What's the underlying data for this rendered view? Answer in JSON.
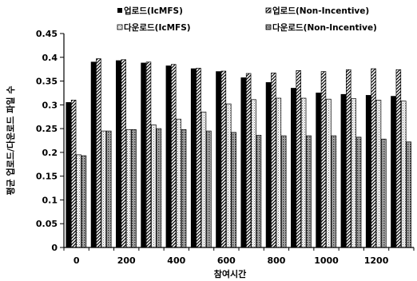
{
  "chart_data": {
    "type": "bar",
    "xlabel": "참여시간",
    "ylabel": "평균 업로드/다운로드 파일 수",
    "ylim": [
      0,
      0.45
    ],
    "yticks": [
      "0",
      "0.05",
      "0.1",
      "0.15",
      "0.2",
      "0.25",
      "0.3",
      "0.35",
      "0.4",
      "0.45"
    ],
    "categories": [
      0,
      100,
      200,
      300,
      400,
      500,
      600,
      700,
      800,
      900,
      1000,
      1100,
      1200,
      1300
    ],
    "xtick_labels": [
      "0",
      "200",
      "400",
      "600",
      "800",
      "1000",
      "1200"
    ],
    "xtick_values": [
      0,
      200,
      400,
      600,
      800,
      1000,
      1200
    ],
    "legend_placement": "top",
    "grid": false,
    "series": [
      {
        "name": "업로드(IcMFS)",
        "pattern": "solid-black",
        "values": [
          0.305,
          0.39,
          0.393,
          0.388,
          0.382,
          0.376,
          0.37,
          0.357,
          0.347,
          0.335,
          0.325,
          0.322,
          0.32,
          0.318
        ]
      },
      {
        "name": "업로드(Non-Incentive)",
        "pattern": "diagonal-hatch",
        "values": [
          0.31,
          0.397,
          0.395,
          0.39,
          0.385,
          0.377,
          0.371,
          0.366,
          0.367,
          0.372,
          0.37,
          0.374,
          0.376,
          0.374
        ]
      },
      {
        "name": "다운로드(IcMFS)",
        "pattern": "light-stipple",
        "values": [
          0.195,
          0.245,
          0.248,
          0.258,
          0.27,
          0.285,
          0.302,
          0.311,
          0.314,
          0.314,
          0.312,
          0.313,
          0.31,
          0.308
        ]
      },
      {
        "name": "다운로드(Non-Incentive)",
        "pattern": "dark-stipple",
        "values": [
          0.193,
          0.245,
          0.248,
          0.25,
          0.248,
          0.245,
          0.242,
          0.236,
          0.235,
          0.235,
          0.235,
          0.232,
          0.228,
          0.222
        ]
      }
    ]
  }
}
